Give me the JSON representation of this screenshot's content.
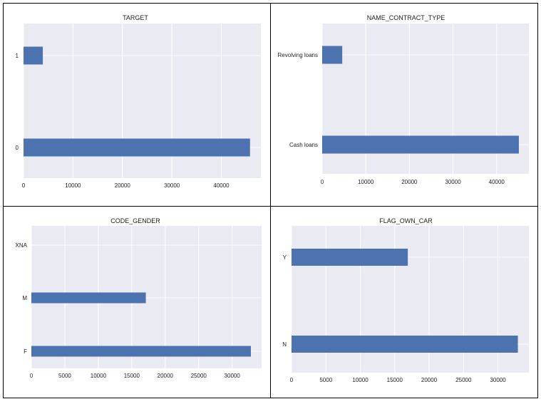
{
  "chart_data": [
    {
      "type": "bar",
      "orientation": "horizontal",
      "title": "TARGET",
      "categories": [
        "0",
        "1"
      ],
      "values": [
        45800,
        3900
      ],
      "xticks": [
        0,
        10000,
        20000,
        30000,
        40000
      ],
      "xlim": [
        0,
        48000
      ],
      "grid": true
    },
    {
      "type": "bar",
      "orientation": "horizontal",
      "title": "NAME_CONTRACT_TYPE",
      "categories": [
        "Cash loans",
        "Revolving loans"
      ],
      "values": [
        45100,
        4600
      ],
      "xticks": [
        0,
        10000,
        20000,
        30000,
        40000
      ],
      "xlim": [
        0,
        47400
      ],
      "grid": true
    },
    {
      "type": "bar",
      "orientation": "horizontal",
      "title": "CODE_GENDER",
      "categories": [
        "F",
        "M",
        "XNA"
      ],
      "values": [
        32800,
        17100,
        0
      ],
      "xticks": [
        0,
        5000,
        10000,
        15000,
        20000,
        25000,
        30000
      ],
      "xlim": [
        0,
        34400
      ],
      "grid": true
    },
    {
      "type": "bar",
      "orientation": "horizontal",
      "title": "FLAG_OWN_CAR",
      "categories": [
        "N",
        "Y"
      ],
      "values": [
        32900,
        16900
      ],
      "xticks": [
        0,
        5000,
        10000,
        15000,
        20000,
        25000,
        30000
      ],
      "xlim": [
        0,
        34500
      ],
      "grid": true
    }
  ],
  "style": {
    "bar_color": "#4c72b0",
    "plot_bg": "#eaeaf2",
    "grid_color": "#ffffff"
  }
}
